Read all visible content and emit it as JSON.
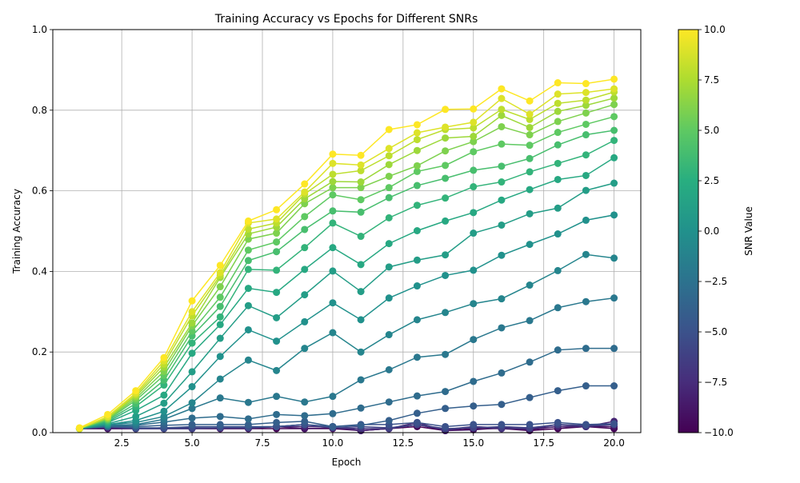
{
  "chart_data": {
    "type": "line",
    "title": "Training Accuracy vs Epochs for Different SNRs",
    "xlabel": "Epoch",
    "ylabel": "Training Accuracy",
    "xlim": [
      0.05,
      20.95
    ],
    "ylim": [
      0.0,
      1.0
    ],
    "grid": true,
    "x_ticks": [
      2.5,
      5.0,
      7.5,
      10.0,
      12.5,
      15.0,
      17.5,
      20.0
    ],
    "x_tick_labels": [
      "2.5",
      "5.0",
      "7.5",
      "10.0",
      "12.5",
      "15.0",
      "17.5",
      "20.0"
    ],
    "y_ticks": [
      0.0,
      0.2,
      0.4,
      0.6,
      0.8,
      1.0
    ],
    "y_tick_labels": [
      "0.0",
      "0.2",
      "0.4",
      "0.6",
      "0.8",
      "1.0"
    ],
    "colorbar": {
      "label": "SNR Value",
      "colormap": "viridis",
      "range": [
        -10,
        10
      ],
      "ticks": [
        10,
        7.5,
        5,
        2.5,
        0,
        -2.5,
        -5,
        -7.5,
        -10
      ],
      "tick_labels": [
        "10.0",
        "7.5",
        "5.0",
        "2.5",
        "0.0",
        "−2.5",
        "−5.0",
        "−7.5",
        "−10.0"
      ]
    },
    "x": [
      1,
      2,
      3,
      4,
      5,
      6,
      7,
      8,
      9,
      10,
      11,
      12,
      13,
      14,
      15,
      16,
      17,
      18,
      19,
      20
    ],
    "series": [
      {
        "name": "SNR -10",
        "snr": -10,
        "values": [
          0.01,
          0.01,
          0.01,
          0.01,
          0.01,
          0.01,
          0.01,
          0.01,
          0.01,
          0.01,
          0.005,
          0.01,
          0.015,
          0.005,
          0.01,
          0.01,
          0.005,
          0.01,
          0.015,
          0.01
        ]
      },
      {
        "name": "SNR -9",
        "snr": -9,
        "values": [
          0.01,
          0.01,
          0.01,
          0.01,
          0.01,
          0.01,
          0.01,
          0.015,
          0.01,
          0.012,
          0.005,
          0.01,
          0.02,
          0.005,
          0.007,
          0.012,
          0.007,
          0.015,
          0.015,
          0.015
        ]
      },
      {
        "name": "SNR -8",
        "snr": -8,
        "values": [
          0.01,
          0.012,
          0.01,
          0.012,
          0.01,
          0.012,
          0.012,
          0.015,
          0.015,
          0.015,
          0.005,
          0.01,
          0.025,
          0.005,
          0.015,
          0.012,
          0.01,
          0.015,
          0.015,
          0.028
        ]
      },
      {
        "name": "SNR -7",
        "snr": -7,
        "values": [
          0.01,
          0.015,
          0.01,
          0.012,
          0.012,
          0.012,
          0.012,
          0.015,
          0.02,
          0.012,
          0.01,
          0.01,
          0.02,
          0.008,
          0.015,
          0.01,
          0.01,
          0.02,
          0.015,
          0.02
        ]
      },
      {
        "name": "SNR -6",
        "snr": -6,
        "values": [
          0.01,
          0.015,
          0.01,
          0.01,
          0.01,
          0.012,
          0.012,
          0.015,
          0.02,
          0.012,
          0.015,
          0.012,
          0.02,
          0.01,
          0.012,
          0.015,
          0.012,
          0.02,
          0.018,
          0.02
        ]
      },
      {
        "name": "SNR -5",
        "snr": -5,
        "values": [
          0.01,
          0.015,
          0.012,
          0.012,
          0.015,
          0.015,
          0.015,
          0.015,
          0.02,
          0.015,
          0.02,
          0.02,
          0.025,
          0.015,
          0.02,
          0.02,
          0.02,
          0.025,
          0.02,
          0.022
        ]
      },
      {
        "name": "SNR -4",
        "snr": -4,
        "values": [
          0.01,
          0.015,
          0.015,
          0.018,
          0.02,
          0.02,
          0.02,
          0.025,
          0.028,
          0.015,
          0.018,
          0.03,
          0.048,
          0.06,
          0.066,
          0.07,
          0.087,
          0.104,
          0.116,
          0.116
        ]
      },
      {
        "name": "SNR -3",
        "snr": -3,
        "values": [
          0.01,
          0.016,
          0.018,
          0.026,
          0.036,
          0.04,
          0.034,
          0.045,
          0.042,
          0.047,
          0.061,
          0.076,
          0.091,
          0.102,
          0.127,
          0.148,
          0.175,
          0.205,
          0.209,
          0.209
        ]
      },
      {
        "name": "SNR -2",
        "snr": -2,
        "values": [
          0.01,
          0.018,
          0.02,
          0.033,
          0.06,
          0.086,
          0.075,
          0.09,
          0.076,
          0.09,
          0.131,
          0.156,
          0.187,
          0.194,
          0.231,
          0.26,
          0.278,
          0.31,
          0.325,
          0.334
        ]
      },
      {
        "name": "SNR -1",
        "snr": -1,
        "values": [
          0.01,
          0.02,
          0.025,
          0.04,
          0.074,
          0.133,
          0.18,
          0.154,
          0.209,
          0.248,
          0.2,
          0.243,
          0.28,
          0.298,
          0.32,
          0.332,
          0.366,
          0.402,
          0.442,
          0.433
        ]
      },
      {
        "name": "SNR 0",
        "snr": 0,
        "values": [
          0.01,
          0.02,
          0.03,
          0.053,
          0.114,
          0.189,
          0.255,
          0.227,
          0.275,
          0.322,
          0.28,
          0.334,
          0.364,
          0.39,
          0.403,
          0.44,
          0.467,
          0.493,
          0.527,
          0.54
        ]
      },
      {
        "name": "SNR 1",
        "snr": 1,
        "values": [
          0.01,
          0.022,
          0.04,
          0.073,
          0.151,
          0.234,
          0.315,
          0.285,
          0.342,
          0.401,
          0.35,
          0.411,
          0.428,
          0.441,
          0.495,
          0.515,
          0.543,
          0.557,
          0.601,
          0.619
        ]
      },
      {
        "name": "SNR 2",
        "snr": 2,
        "values": [
          0.01,
          0.025,
          0.055,
          0.093,
          0.197,
          0.268,
          0.358,
          0.348,
          0.405,
          0.459,
          0.417,
          0.469,
          0.501,
          0.525,
          0.546,
          0.577,
          0.603,
          0.628,
          0.638,
          0.682
        ]
      },
      {
        "name": "SNR 3",
        "snr": 3,
        "values": [
          0.01,
          0.027,
          0.065,
          0.118,
          0.222,
          0.287,
          0.405,
          0.403,
          0.459,
          0.52,
          0.487,
          0.533,
          0.564,
          0.582,
          0.61,
          0.622,
          0.647,
          0.668,
          0.689,
          0.725
        ]
      },
      {
        "name": "SNR 4",
        "snr": 4,
        "values": [
          0.01,
          0.03,
          0.072,
          0.13,
          0.24,
          0.313,
          0.427,
          0.449,
          0.504,
          0.55,
          0.547,
          0.583,
          0.613,
          0.631,
          0.651,
          0.661,
          0.68,
          0.714,
          0.739,
          0.75
        ]
      },
      {
        "name": "SNR 5",
        "snr": 5,
        "values": [
          0.01,
          0.032,
          0.08,
          0.142,
          0.252,
          0.336,
          0.453,
          0.473,
          0.536,
          0.59,
          0.578,
          0.608,
          0.648,
          0.663,
          0.697,
          0.716,
          0.713,
          0.745,
          0.765,
          0.784
        ]
      },
      {
        "name": "SNR 6",
        "snr": 6,
        "values": [
          0.01,
          0.034,
          0.085,
          0.152,
          0.265,
          0.362,
          0.48,
          0.495,
          0.568,
          0.608,
          0.608,
          0.636,
          0.662,
          0.699,
          0.722,
          0.759,
          0.739,
          0.772,
          0.793,
          0.814
        ]
      },
      {
        "name": "SNR 7",
        "snr": 7,
        "values": [
          0.01,
          0.036,
          0.09,
          0.162,
          0.272,
          0.385,
          0.493,
          0.51,
          0.58,
          0.623,
          0.622,
          0.665,
          0.7,
          0.731,
          0.735,
          0.787,
          0.757,
          0.797,
          0.812,
          0.83
        ]
      },
      {
        "name": "SNR 8",
        "snr": 8,
        "values": [
          0.01,
          0.038,
          0.094,
          0.17,
          0.29,
          0.39,
          0.505,
          0.52,
          0.592,
          0.641,
          0.65,
          0.687,
          0.727,
          0.752,
          0.756,
          0.802,
          0.777,
          0.817,
          0.825,
          0.845
        ]
      },
      {
        "name": "SNR 9",
        "snr": 9,
        "values": [
          0.01,
          0.04,
          0.098,
          0.178,
          0.3,
          0.397,
          0.52,
          0.53,
          0.597,
          0.668,
          0.664,
          0.705,
          0.744,
          0.758,
          0.77,
          0.829,
          0.79,
          0.84,
          0.844,
          0.853
        ]
      },
      {
        "name": "SNR 10",
        "snr": 10,
        "values": [
          0.012,
          0.045,
          0.104,
          0.186,
          0.327,
          0.415,
          0.525,
          0.553,
          0.617,
          0.691,
          0.688,
          0.752,
          0.764,
          0.802,
          0.803,
          0.853,
          0.823,
          0.868,
          0.866,
          0.877
        ]
      }
    ]
  }
}
